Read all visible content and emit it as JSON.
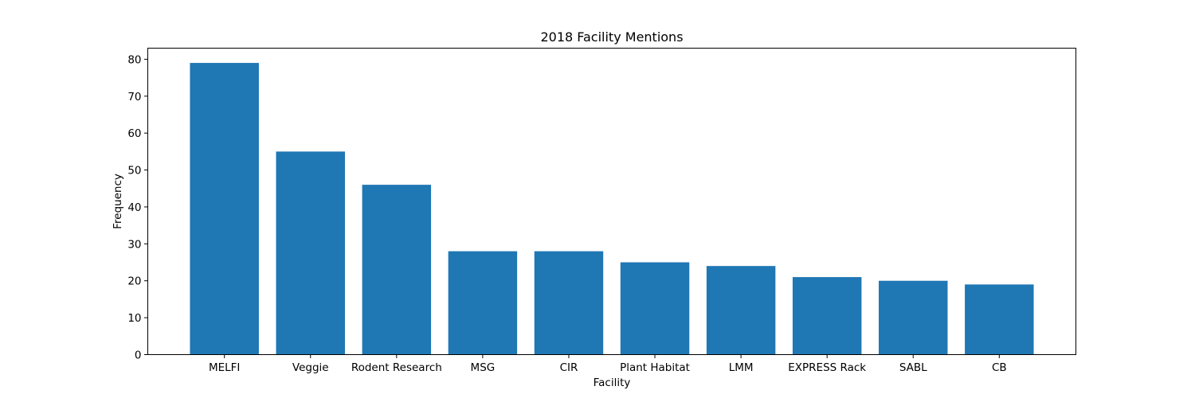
{
  "chart_data": {
    "type": "bar",
    "title": "2018 Facility Mentions",
    "xlabel": "Facility",
    "ylabel": "Frequency",
    "categories": [
      "MELFI",
      "Veggie",
      "Rodent Research",
      "MSG",
      "CIR",
      "Plant Habitat",
      "LMM",
      "EXPRESS Rack",
      "SABL",
      "CB"
    ],
    "values": [
      79,
      55,
      46,
      28,
      28,
      25,
      24,
      21,
      20,
      19
    ],
    "ylim": [
      0,
      83
    ],
    "yticks": [
      0,
      10,
      20,
      30,
      40,
      50,
      60,
      70,
      80
    ],
    "ytick_labels": [
      "0",
      "10",
      "20",
      "30",
      "40",
      "50",
      "60",
      "70",
      "80"
    ],
    "grid": false,
    "bar_color": "#1f77b4"
  }
}
